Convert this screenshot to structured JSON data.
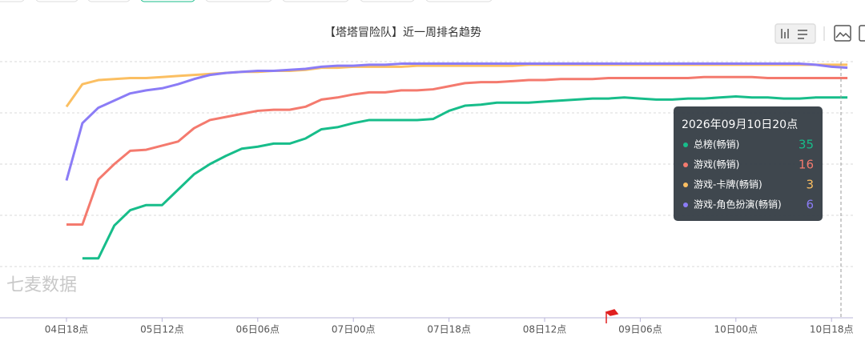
{
  "chart_data": {
    "type": "line",
    "title": "【塔塔冒险队】近一周排名趋势",
    "watermark": "七麦数据",
    "categories": [
      "04日18点",
      null,
      null,
      null,
      null,
      null,
      "05日12点",
      null,
      null,
      null,
      null,
      null,
      "06日06点",
      null,
      null,
      null,
      null,
      null,
      "07日00点",
      null,
      null,
      null,
      null,
      null,
      "07日18点",
      null,
      null,
      null,
      null,
      null,
      "08日12点",
      null,
      null,
      null,
      null,
      null,
      "09日06点",
      null,
      null,
      null,
      null,
      null,
      "10日00点",
      null,
      null,
      null,
      null,
      null,
      "10日18点",
      null
    ],
    "ylim": [
      0,
      250
    ],
    "yticks": [
      0,
      50,
      100,
      150,
      200,
      250
    ],
    "y_inverse": true,
    "grid": true,
    "series": [
      {
        "name": "总榜(畅销)",
        "color": "#17bd8a",
        "values": [
          null,
          192,
          192,
          160,
          145,
          140,
          140,
          125,
          110,
          100,
          92,
          85,
          83,
          80,
          80,
          75,
          66,
          64,
          60,
          57,
          57,
          57,
          57,
          56,
          48,
          43,
          42,
          40,
          40,
          40,
          39,
          38,
          37,
          36,
          36,
          35,
          36,
          37,
          37,
          36,
          36,
          35,
          34,
          35,
          35,
          36,
          36,
          35,
          35,
          35
        ]
      },
      {
        "name": "游戏(畅销)",
        "color": "#f47a6e",
        "values": [
          159,
          159,
          115,
          100,
          87,
          86,
          82,
          78,
          65,
          57,
          54,
          51,
          48,
          47,
          47,
          44,
          37,
          35,
          32,
          30,
          30,
          28,
          28,
          27,
          24,
          21,
          20,
          20,
          19,
          18,
          18,
          17,
          17,
          17,
          16,
          16,
          16,
          16,
          16,
          16,
          15,
          15,
          15,
          15,
          16,
          16,
          16,
          16,
          16,
          16
        ]
      },
      {
        "name": "游戏-卡牌(畅销)",
        "color": "#fbbf62",
        "values": [
          44,
          22,
          18,
          17,
          16,
          16,
          15,
          14,
          13,
          12,
          11,
          10,
          10,
          9,
          9,
          8,
          6,
          6,
          5,
          5,
          5,
          5,
          4,
          4,
          4,
          4,
          4,
          4,
          4,
          3,
          3,
          3,
          3,
          3,
          3,
          3,
          3,
          3,
          3,
          3,
          3,
          3,
          3,
          3,
          3,
          3,
          3,
          3,
          3,
          3
        ]
      },
      {
        "name": "游戏-角色扮演(畅销)",
        "color": "#8b7cf6",
        "values": [
          116,
          60,
          45,
          38,
          31,
          28,
          26,
          22,
          17,
          13,
          11,
          10,
          9,
          9,
          8,
          7,
          5,
          4,
          4,
          3,
          3,
          2,
          2,
          2,
          2,
          2,
          2,
          2,
          2,
          2,
          2,
          2,
          2,
          2,
          2,
          2,
          2,
          2,
          2,
          2,
          2,
          2,
          2,
          2,
          2,
          2,
          2,
          3,
          5,
          6
        ]
      }
    ],
    "tooltip": {
      "title": "2026年09月10日20点",
      "values": [
        35,
        16,
        3,
        6
      ]
    }
  }
}
